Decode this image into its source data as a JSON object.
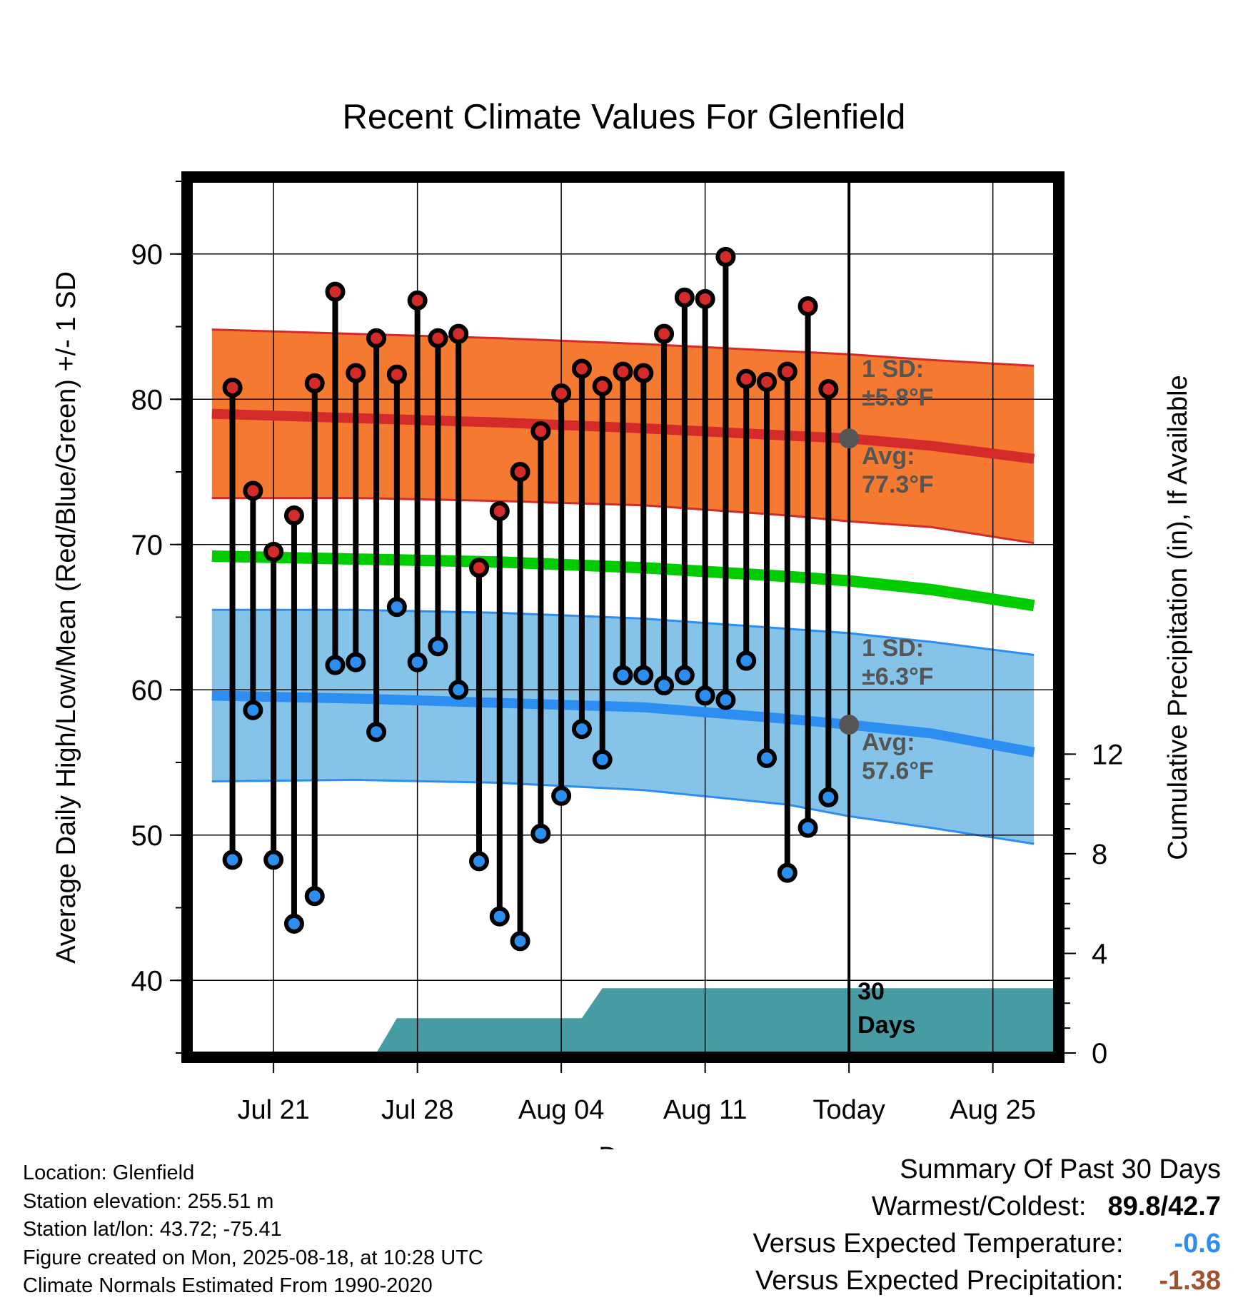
{
  "chart_data": {
    "type": "line",
    "title": "Recent Climate Values For Glenfield",
    "xlabel": "Day",
    "ylabel_left": "Average Daily High/Low/Mean (Red/Blue/Green) +/- 1 SD",
    "ylabel_right": "Cumulative Precipitation (in), If Available",
    "x_range": [
      "Jul 17",
      "Aug 28"
    ],
    "ylim_left": [
      35,
      95
    ],
    "ylim_right": [
      0,
      35
    ],
    "yticks_left": [
      "40",
      "50",
      "60",
      "70",
      "80",
      "90"
    ],
    "yticks_right": [
      "0",
      "4",
      "8",
      "12"
    ],
    "xticks": [
      {
        "date": "Jul 21",
        "label": "Jul 21"
      },
      {
        "date": "Jul 28",
        "label": "Jul 28"
      },
      {
        "date": "Aug 04",
        "label": "Aug 04"
      },
      {
        "date": "Aug 11",
        "label": "Aug 11"
      },
      {
        "date": "Aug 18",
        "label": "Today"
      },
      {
        "date": "Aug 25",
        "label": "Aug 25"
      }
    ],
    "grid": true,
    "daily": {
      "dates": [
        "Jul 19",
        "Jul 20",
        "Jul 21",
        "Jul 22",
        "Jul 23",
        "Jul 24",
        "Jul 25",
        "Jul 26",
        "Jul 27",
        "Jul 28",
        "Jul 29",
        "Jul 30",
        "Jul 31",
        "Aug 01",
        "Aug 02",
        "Aug 03",
        "Aug 04",
        "Aug 05",
        "Aug 06",
        "Aug 07",
        "Aug 08",
        "Aug 09",
        "Aug 10",
        "Aug 11",
        "Aug 12",
        "Aug 13",
        "Aug 14",
        "Aug 15",
        "Aug 16",
        "Aug 17"
      ],
      "high": [
        80.8,
        73.7,
        69.5,
        72.0,
        81.1,
        87.4,
        81.8,
        84.2,
        81.7,
        86.8,
        84.2,
        84.5,
        68.4,
        72.3,
        75.0,
        77.8,
        80.4,
        82.1,
        80.9,
        81.9,
        81.8,
        84.5,
        87.0,
        86.9,
        89.8,
        81.4,
        81.2,
        81.9,
        86.4,
        80.7
      ],
      "low": [
        48.3,
        58.6,
        48.3,
        43.9,
        45.8,
        61.7,
        61.9,
        57.1,
        65.7,
        61.9,
        63.0,
        60.0,
        48.2,
        44.4,
        42.7,
        50.1,
        52.7,
        57.3,
        55.2,
        61.0,
        61.0,
        60.3,
        61.0,
        59.6,
        59.3,
        62.0,
        55.3,
        47.4,
        50.5,
        52.6
      ],
      "high_color": "#d42a2a",
      "low_color": "#2b8ef0"
    },
    "normals": {
      "dates": [
        "Jul 18",
        "Jul 25",
        "Aug 01",
        "Aug 08",
        "Aug 15",
        "Aug 18",
        "Aug 22",
        "Aug 27"
      ],
      "high_avg": [
        79.0,
        78.7,
        78.4,
        78.0,
        77.5,
        77.3,
        76.8,
        75.9
      ],
      "high_sd_upper": [
        84.8,
        84.5,
        84.2,
        83.8,
        83.3,
        83.1,
        82.7,
        82.3
      ],
      "high_sd_lower": [
        73.2,
        73.2,
        73.0,
        72.7,
        72.0,
        71.6,
        71.2,
        70.1
      ],
      "mean_avg": [
        69.2,
        69.0,
        68.8,
        68.4,
        67.8,
        67.5,
        66.9,
        65.8
      ],
      "low_avg": [
        59.6,
        59.4,
        59.1,
        58.8,
        58.0,
        57.6,
        57.0,
        55.7
      ],
      "low_sd_upper": [
        65.5,
        65.5,
        65.3,
        64.9,
        64.2,
        63.9,
        63.3,
        62.4
      ],
      "low_sd_lower": [
        53.7,
        53.8,
        53.6,
        53.1,
        52.1,
        51.3,
        50.5,
        49.4
      ],
      "high_color": "#d42a2a",
      "high_band_color": "#f47a32",
      "mean_color": "#00cc00",
      "low_color": "#2b8ef0",
      "low_band_color": "#85c3e8"
    },
    "precipitation": {
      "dates": [
        "Jul 17",
        "Jul 26",
        "Jul 27",
        "Aug 05",
        "Aug 06",
        "Aug 28"
      ],
      "values": [
        0,
        0,
        1.4,
        1.4,
        2.6,
        2.6
      ],
      "color": "#479ba3"
    },
    "today_point_color": "#555555",
    "annotations": {
      "high_sd_label": "1 SD:",
      "high_sd_value": "±5.8°F",
      "high_avg_label": "Avg:",
      "high_avg_value": "77.3°F",
      "low_sd_label": "1 SD:",
      "low_sd_value": "±6.3°F",
      "low_avg_label": "Avg:",
      "low_avg_value": "57.6°F",
      "window_number": "30",
      "window_unit": "Days"
    }
  },
  "info": {
    "location": "Location: Glenfield",
    "elevation": "Station elevation: 255.51 m",
    "latlon": "Station lat/lon: 43.72; -75.41",
    "created": "Figure created on Mon, 2025-08-18, at 10:28 UTC",
    "normals": "Climate Normals Estimated From 1990-2020"
  },
  "summary": {
    "title": "Summary Of Past 30 Days",
    "warm_cold_label": "Warmest/Coldest:",
    "warmest": "89.8",
    "separator": "/",
    "coldest": "42.7",
    "temp_label": "Versus Expected Temperature:",
    "temp_value": "-0.6",
    "temp_color": "#2b8ef0",
    "precip_label": "Versus Expected Precipitation:",
    "precip_value": "-1.38",
    "precip_color": "#a0522d"
  }
}
